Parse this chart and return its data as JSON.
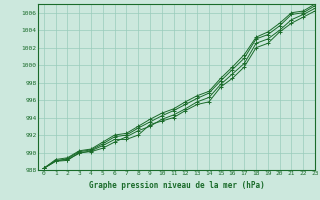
{
  "title": "Graphe pression niveau de la mer (hPa)",
  "bg_color": "#cce8dd",
  "grid_color": "#99ccbb",
  "line_color": "#1a6b2a",
  "marker_color": "#1a6b2a",
  "xlim": [
    -0.5,
    23
  ],
  "ylim": [
    988,
    1007
  ],
  "yticks": [
    988,
    990,
    992,
    994,
    996,
    998,
    1000,
    1002,
    1004,
    1006
  ],
  "xticks": [
    0,
    1,
    2,
    3,
    4,
    5,
    6,
    7,
    8,
    9,
    10,
    11,
    12,
    13,
    14,
    15,
    16,
    17,
    18,
    19,
    20,
    21,
    22,
    23
  ],
  "hours": [
    0,
    1,
    2,
    3,
    4,
    5,
    6,
    7,
    8,
    9,
    10,
    11,
    12,
    13,
    14,
    15,
    16,
    17,
    18,
    19,
    20,
    21,
    22,
    23
  ],
  "series": [
    [
      988.2,
      989.0,
      989.1,
      990.0,
      990.1,
      990.5,
      991.2,
      991.8,
      992.5,
      993.0,
      993.8,
      994.3,
      995.0,
      995.8,
      996.3,
      997.8,
      999.0,
      1000.2,
      1002.5,
      1003.0,
      1004.0,
      1005.2,
      1005.8,
      1006.5
    ],
    [
      988.2,
      989.1,
      989.2,
      989.9,
      990.2,
      990.8,
      991.5,
      991.5,
      992.0,
      993.2,
      993.6,
      994.0,
      994.8,
      995.5,
      995.8,
      997.5,
      998.5,
      999.8,
      1002.0,
      1002.5,
      1003.8,
      1004.8,
      1005.5,
      1006.2
    ],
    [
      988.2,
      989.0,
      989.3,
      990.1,
      990.3,
      991.0,
      991.8,
      992.0,
      992.8,
      993.5,
      994.2,
      994.8,
      995.5,
      996.2,
      996.8,
      998.2,
      999.5,
      1000.8,
      1003.0,
      1003.5,
      1004.5,
      1005.8,
      1006.0,
      1006.8
    ],
    [
      988.2,
      989.2,
      989.4,
      990.2,
      990.4,
      991.2,
      992.0,
      992.2,
      993.0,
      993.8,
      994.5,
      995.0,
      995.8,
      996.5,
      997.0,
      998.5,
      999.8,
      1001.2,
      1003.2,
      1003.8,
      1004.8,
      1006.0,
      1006.2,
      1007.0
    ]
  ]
}
